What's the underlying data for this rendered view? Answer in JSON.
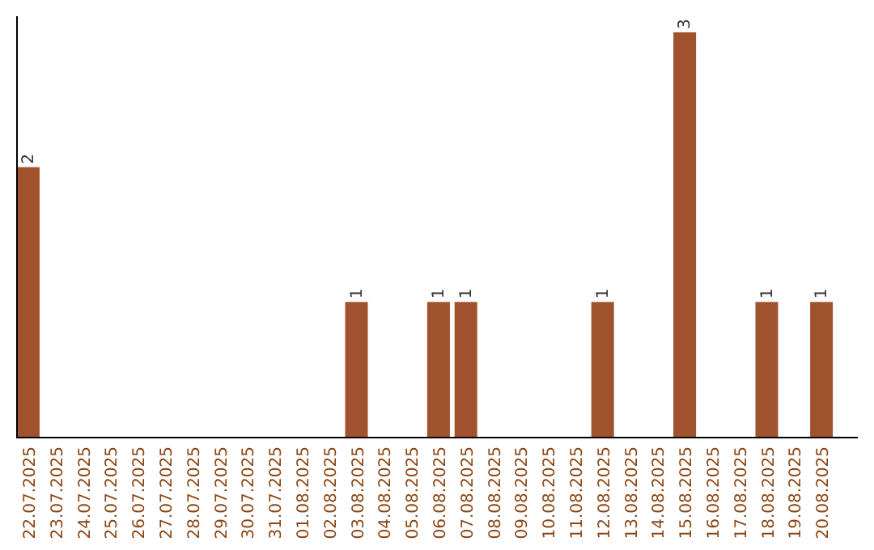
{
  "chart_data": {
    "type": "bar",
    "categories": [
      "22.07.2025",
      "23.07.2025",
      "24.07.2025",
      "25.07.2025",
      "26.07.2025",
      "27.07.2025",
      "28.07.2025",
      "29.07.2025",
      "30.07.2025",
      "31.07.2025",
      "01.08.2025",
      "02.08.2025",
      "03.08.2025",
      "04.08.2025",
      "05.08.2025",
      "06.08.2025",
      "07.08.2025",
      "08.08.2025",
      "09.08.2025",
      "10.08.2025",
      "11.08.2025",
      "12.08.2025",
      "13.08.2025",
      "14.08.2025",
      "15.08.2025",
      "16.08.2025",
      "17.08.2025",
      "18.08.2025",
      "19.08.2025",
      "20.08.2025"
    ],
    "values": [
      2,
      0,
      0,
      0,
      0,
      0,
      0,
      0,
      0,
      0,
      0,
      0,
      1,
      0,
      0,
      1,
      1,
      0,
      0,
      0,
      0,
      1,
      0,
      0,
      3,
      0,
      0,
      1,
      0,
      1
    ],
    "color": "#a0522d",
    "value_labels": [
      "2",
      null,
      null,
      null,
      null,
      null,
      null,
      null,
      null,
      null,
      null,
      null,
      "1",
      null,
      null,
      "1",
      "1",
      null,
      null,
      null,
      null,
      "1",
      null,
      null,
      "3",
      null,
      null,
      "1",
      null,
      "1"
    ],
    "tick_labels": "x"
  }
}
